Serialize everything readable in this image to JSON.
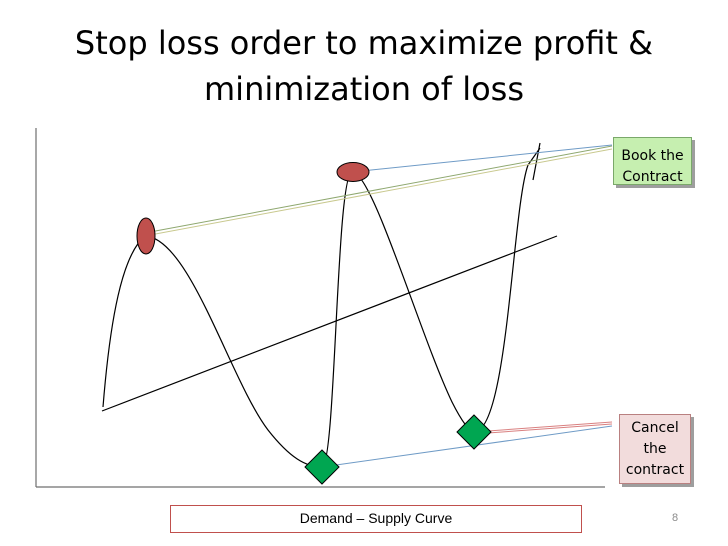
{
  "title": {
    "line1": "Stop loss order to maximize profit &",
    "line2": "minimization of loss"
  },
  "callouts": {
    "book": {
      "line1": "Book the",
      "line2": "Contract"
    },
    "cancel": {
      "line1": "Cancel",
      "line2": "the",
      "line3": "contract"
    }
  },
  "caption": "Demand – Supply Curve",
  "page_number": "8",
  "colors": {
    "peak_marker": "#c0504d",
    "trough_marker": "#00a651",
    "book_callout": "#c6efb0",
    "cancel_callout": "#f2dcdc",
    "caption_border": "#c0504d"
  }
}
